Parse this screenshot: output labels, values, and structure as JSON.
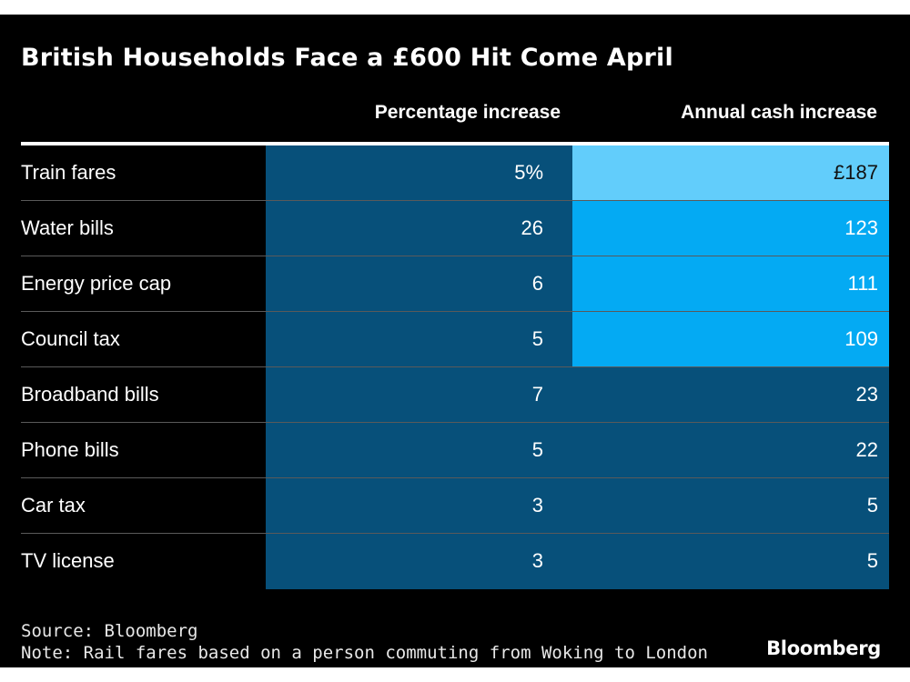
{
  "chart_data": {
    "type": "table",
    "title": "British Households Face a £600 Hit Come April",
    "columns": [
      "",
      "Percentage increase",
      "Annual cash increase"
    ],
    "rows": [
      {
        "label": "Train fares",
        "pct": "5%",
        "cash": "£187",
        "pct_value": 5,
        "cash_value": 187
      },
      {
        "label": "Water bills",
        "pct": "26",
        "cash": "123",
        "pct_value": 26,
        "cash_value": 123
      },
      {
        "label": "Energy price cap",
        "pct": "6",
        "cash": "111",
        "pct_value": 6,
        "cash_value": 111
      },
      {
        "label": "Council tax",
        "pct": "5",
        "cash": "109",
        "pct_value": 5,
        "cash_value": 109
      },
      {
        "label": "Broadband bills",
        "pct": "7",
        "cash": "23",
        "pct_value": 7,
        "cash_value": 23
      },
      {
        "label": "Phone bills",
        "pct": "5",
        "cash": "22",
        "pct_value": 5,
        "cash_value": 22
      },
      {
        "label": "Car tax",
        "pct": "3",
        "cash": "5",
        "pct_value": 3,
        "cash_value": 5
      },
      {
        "label": "TV license",
        "pct": "3",
        "cash": "5",
        "pct_value": 3,
        "cash_value": 5
      }
    ],
    "colors": {
      "background": "#000000",
      "pct_cell": "#07507a",
      "cash_top": "#62cdfb",
      "cash_high": "#04aaf3",
      "cash_low": "#07507a"
    },
    "source": "Source: Bloomberg",
    "note": "Note: Rail fares based on a person commuting from Woking to London"
  },
  "branding": {
    "logo_text": "Bloomberg"
  }
}
